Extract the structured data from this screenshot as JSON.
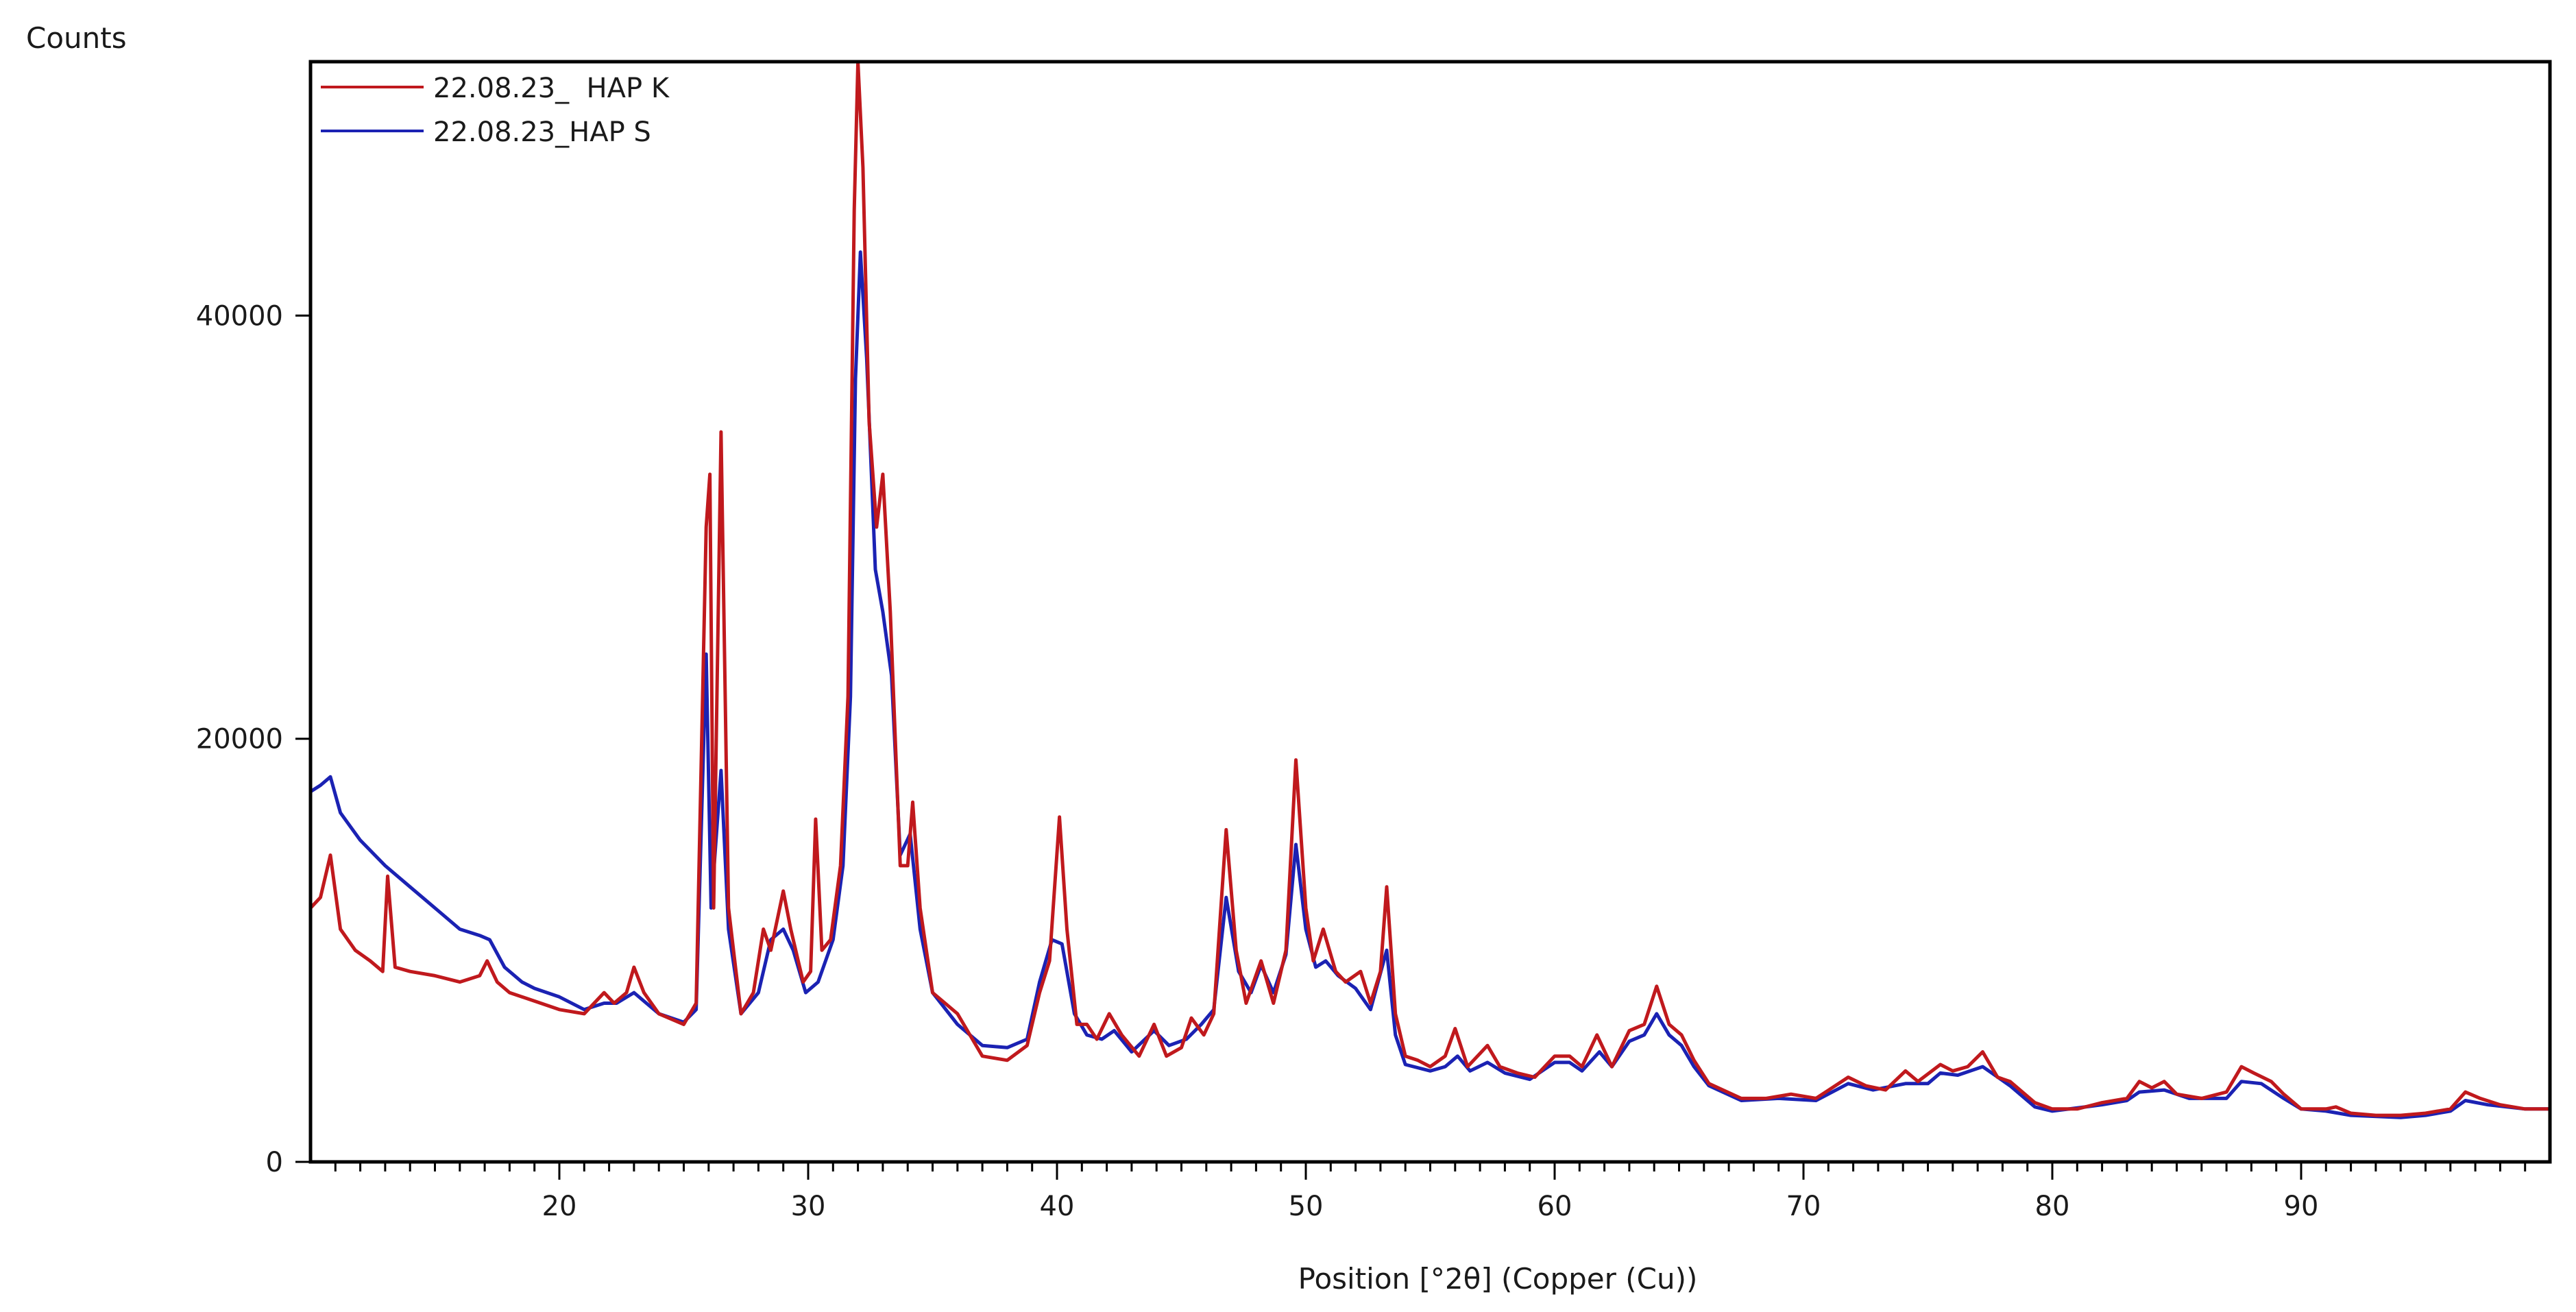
{
  "chart_data": {
    "type": "line",
    "title": "",
    "ylabel": "Counts",
    "xlabel": "Position [°2θ] (Copper (Cu))",
    "xlim": [
      10,
      100
    ],
    "ylim": [
      0,
      52000
    ],
    "x_ticks": [
      20,
      30,
      40,
      50,
      60,
      70,
      80,
      90
    ],
    "y_ticks": [
      0,
      20000,
      40000
    ],
    "x_minor_step": 1,
    "legend_position": "top-left",
    "grid": false,
    "series": [
      {
        "name": "22.08.23_  HAP K",
        "color": "#c0191d",
        "points": [
          [
            10,
            12000
          ],
          [
            10.4,
            12500
          ],
          [
            10.8,
            14500
          ],
          [
            11.2,
            11000
          ],
          [
            11.8,
            10000
          ],
          [
            12.4,
            9500
          ],
          [
            12.9,
            9000
          ],
          [
            13.1,
            13500
          ],
          [
            13.4,
            9200
          ],
          [
            14,
            9000
          ],
          [
            15,
            8800
          ],
          [
            16,
            8500
          ],
          [
            16.8,
            8800
          ],
          [
            17.1,
            9500
          ],
          [
            17.5,
            8500
          ],
          [
            18,
            8000
          ],
          [
            19,
            7600
          ],
          [
            20,
            7200
          ],
          [
            21,
            7000
          ],
          [
            21.8,
            8000
          ],
          [
            22.2,
            7500
          ],
          [
            22.7,
            8000
          ],
          [
            23,
            9200
          ],
          [
            23.4,
            8000
          ],
          [
            24,
            7000
          ],
          [
            25,
            6500
          ],
          [
            25.5,
            7500
          ],
          [
            25.9,
            30000
          ],
          [
            26.05,
            32500
          ],
          [
            26.2,
            12000
          ],
          [
            26.5,
            34500
          ],
          [
            26.8,
            12000
          ],
          [
            27.3,
            7000
          ],
          [
            27.8,
            8000
          ],
          [
            28.2,
            11000
          ],
          [
            28.5,
            10000
          ],
          [
            29,
            12800
          ],
          [
            29.3,
            11000
          ],
          [
            29.8,
            8500
          ],
          [
            30.1,
            9000
          ],
          [
            30.3,
            16200
          ],
          [
            30.55,
            10000
          ],
          [
            30.9,
            10500
          ],
          [
            31.3,
            14000
          ],
          [
            31.6,
            22000
          ],
          [
            31.85,
            45000
          ],
          [
            32.0,
            52000
          ],
          [
            32.2,
            47000
          ],
          [
            32.45,
            35000
          ],
          [
            32.75,
            30000
          ],
          [
            33.0,
            32500
          ],
          [
            33.3,
            26000
          ],
          [
            33.7,
            14000
          ],
          [
            34.0,
            14000
          ],
          [
            34.2,
            17000
          ],
          [
            34.5,
            12000
          ],
          [
            35,
            8000
          ],
          [
            35.5,
            7500
          ],
          [
            36,
            7000
          ],
          [
            37,
            5000
          ],
          [
            38,
            4800
          ],
          [
            38.8,
            5500
          ],
          [
            39.3,
            8000
          ],
          [
            39.7,
            9500
          ],
          [
            40.1,
            16300
          ],
          [
            40.4,
            11000
          ],
          [
            40.8,
            6500
          ],
          [
            41.2,
            6500
          ],
          [
            41.6,
            5800
          ],
          [
            42.1,
            7000
          ],
          [
            42.6,
            6000
          ],
          [
            43.3,
            5000
          ],
          [
            43.9,
            6500
          ],
          [
            44.4,
            5000
          ],
          [
            45,
            5400
          ],
          [
            45.4,
            6800
          ],
          [
            45.9,
            6000
          ],
          [
            46.3,
            7000
          ],
          [
            46.8,
            15700
          ],
          [
            47.2,
            10000
          ],
          [
            47.6,
            7500
          ],
          [
            48.2,
            9500
          ],
          [
            48.7,
            7500
          ],
          [
            49.2,
            10000
          ],
          [
            49.6,
            19000
          ],
          [
            50.0,
            12000
          ],
          [
            50.3,
            9500
          ],
          [
            50.7,
            11000
          ],
          [
            51.2,
            9000
          ],
          [
            51.6,
            8500
          ],
          [
            52.2,
            9000
          ],
          [
            52.6,
            7500
          ],
          [
            53.0,
            9000
          ],
          [
            53.25,
            13000
          ],
          [
            53.6,
            7000
          ],
          [
            54.0,
            5000
          ],
          [
            54.5,
            4800
          ],
          [
            55,
            4500
          ],
          [
            55.6,
            5000
          ],
          [
            56.0,
            6300
          ],
          [
            56.5,
            4500
          ],
          [
            57.3,
            5500
          ],
          [
            57.8,
            4500
          ],
          [
            58.5,
            4200
          ],
          [
            59.2,
            4000
          ],
          [
            60,
            5000
          ],
          [
            60.6,
            5000
          ],
          [
            61.1,
            4500
          ],
          [
            61.7,
            6000
          ],
          [
            62.3,
            4500
          ],
          [
            63,
            6200
          ],
          [
            63.6,
            6500
          ],
          [
            64.1,
            8300
          ],
          [
            64.6,
            6500
          ],
          [
            65.1,
            6000
          ],
          [
            65.6,
            4800
          ],
          [
            66.2,
            3700
          ],
          [
            67.5,
            3000
          ],
          [
            68.5,
            3000
          ],
          [
            69.5,
            3200
          ],
          [
            70.5,
            3000
          ],
          [
            71.8,
            4000
          ],
          [
            72.5,
            3600
          ],
          [
            73.3,
            3400
          ],
          [
            74.1,
            4300
          ],
          [
            74.6,
            3800
          ],
          [
            75.5,
            4600
          ],
          [
            76,
            4300
          ],
          [
            76.6,
            4500
          ],
          [
            77.2,
            5200
          ],
          [
            77.8,
            4000
          ],
          [
            78.3,
            3800
          ],
          [
            79.3,
            2800
          ],
          [
            80,
            2500
          ],
          [
            81,
            2500
          ],
          [
            82,
            2800
          ],
          [
            83,
            3000
          ],
          [
            83.5,
            3800
          ],
          [
            84,
            3500
          ],
          [
            84.5,
            3800
          ],
          [
            85,
            3200
          ],
          [
            86,
            3000
          ],
          [
            87,
            3300
          ],
          [
            87.6,
            4500
          ],
          [
            88.1,
            4200
          ],
          [
            88.8,
            3800
          ],
          [
            89.3,
            3200
          ],
          [
            90,
            2500
          ],
          [
            91,
            2500
          ],
          [
            91.4,
            2600
          ],
          [
            92,
            2300
          ],
          [
            93,
            2200
          ],
          [
            94,
            2200
          ],
          [
            95,
            2300
          ],
          [
            96,
            2500
          ],
          [
            96.6,
            3300
          ],
          [
            97.2,
            3000
          ],
          [
            98,
            2700
          ],
          [
            99,
            2500
          ],
          [
            100,
            2500
          ]
        ]
      },
      {
        "name": "22.08.23_HAP S",
        "color": "#1b22b3",
        "points": [
          [
            10,
            17500
          ],
          [
            10.4,
            17800
          ],
          [
            10.8,
            18200
          ],
          [
            11.2,
            16500
          ],
          [
            12,
            15200
          ],
          [
            13,
            14000
          ],
          [
            14,
            13000
          ],
          [
            15,
            12000
          ],
          [
            16,
            11000
          ],
          [
            16.8,
            10700
          ],
          [
            17.2,
            10500
          ],
          [
            17.8,
            9200
          ],
          [
            18.5,
            8500
          ],
          [
            19,
            8200
          ],
          [
            20,
            7800
          ],
          [
            21,
            7200
          ],
          [
            21.8,
            7500
          ],
          [
            22.3,
            7500
          ],
          [
            23,
            8000
          ],
          [
            23.5,
            7500
          ],
          [
            24,
            7000
          ],
          [
            25,
            6600
          ],
          [
            25.5,
            7200
          ],
          [
            25.9,
            24000
          ],
          [
            26.1,
            12000
          ],
          [
            26.5,
            18500
          ],
          [
            26.8,
            11000
          ],
          [
            27.3,
            7000
          ],
          [
            28,
            8000
          ],
          [
            28.5,
            10500
          ],
          [
            29,
            11000
          ],
          [
            29.4,
            10000
          ],
          [
            29.9,
            8000
          ],
          [
            30.4,
            8500
          ],
          [
            31,
            10500
          ],
          [
            31.4,
            14000
          ],
          [
            31.7,
            22000
          ],
          [
            31.9,
            37000
          ],
          [
            32.1,
            43000
          ],
          [
            32.35,
            38000
          ],
          [
            32.7,
            28000
          ],
          [
            33.0,
            26000
          ],
          [
            33.35,
            23000
          ],
          [
            33.7,
            14500
          ],
          [
            34.1,
            15500
          ],
          [
            34.5,
            11000
          ],
          [
            35,
            8000
          ],
          [
            36,
            6500
          ],
          [
            37,
            5500
          ],
          [
            38,
            5400
          ],
          [
            38.8,
            5800
          ],
          [
            39.3,
            8500
          ],
          [
            39.8,
            10500
          ],
          [
            40.2,
            10300
          ],
          [
            40.7,
            7000
          ],
          [
            41.2,
            6000
          ],
          [
            41.8,
            5800
          ],
          [
            42.3,
            6200
          ],
          [
            43,
            5200
          ],
          [
            43.9,
            6200
          ],
          [
            44.5,
            5500
          ],
          [
            45.2,
            5800
          ],
          [
            45.8,
            6500
          ],
          [
            46.3,
            7200
          ],
          [
            46.8,
            12500
          ],
          [
            47.3,
            9000
          ],
          [
            47.8,
            8000
          ],
          [
            48.2,
            9300
          ],
          [
            48.7,
            8000
          ],
          [
            49.2,
            9800
          ],
          [
            49.6,
            15000
          ],
          [
            50.0,
            11000
          ],
          [
            50.4,
            9200
          ],
          [
            50.8,
            9500
          ],
          [
            51.3,
            8800
          ],
          [
            52,
            8200
          ],
          [
            52.6,
            7200
          ],
          [
            53.25,
            10000
          ],
          [
            53.6,
            6000
          ],
          [
            54,
            4600
          ],
          [
            55,
            4300
          ],
          [
            55.6,
            4500
          ],
          [
            56.1,
            5000
          ],
          [
            56.6,
            4300
          ],
          [
            57.3,
            4700
          ],
          [
            58,
            4200
          ],
          [
            59,
            3900
          ],
          [
            60,
            4700
          ],
          [
            60.6,
            4700
          ],
          [
            61.1,
            4300
          ],
          [
            61.8,
            5200
          ],
          [
            62.3,
            4500
          ],
          [
            63,
            5700
          ],
          [
            63.6,
            6000
          ],
          [
            64.1,
            7000
          ],
          [
            64.6,
            6000
          ],
          [
            65.1,
            5500
          ],
          [
            65.6,
            4500
          ],
          [
            66.2,
            3600
          ],
          [
            67.5,
            2900
          ],
          [
            69,
            3000
          ],
          [
            70.5,
            2900
          ],
          [
            71.8,
            3700
          ],
          [
            72.8,
            3400
          ],
          [
            74.1,
            3700
          ],
          [
            75,
            3700
          ],
          [
            75.5,
            4200
          ],
          [
            76.2,
            4100
          ],
          [
            77.2,
            4500
          ],
          [
            78.3,
            3600
          ],
          [
            79.3,
            2600
          ],
          [
            80,
            2400
          ],
          [
            82,
            2700
          ],
          [
            83,
            2900
          ],
          [
            83.5,
            3300
          ],
          [
            84.5,
            3400
          ],
          [
            85.5,
            3000
          ],
          [
            87,
            3000
          ],
          [
            87.6,
            3800
          ],
          [
            88.4,
            3700
          ],
          [
            89.3,
            3000
          ],
          [
            90,
            2500
          ],
          [
            91,
            2400
          ],
          [
            92,
            2200
          ],
          [
            94,
            2100
          ],
          [
            95,
            2200
          ],
          [
            96,
            2400
          ],
          [
            96.6,
            2900
          ],
          [
            97.5,
            2700
          ],
          [
            99,
            2500
          ],
          [
            100,
            2500
          ]
        ]
      }
    ]
  }
}
